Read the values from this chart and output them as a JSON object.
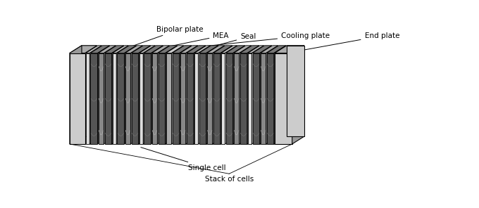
{
  "background_color": "#ffffff",
  "labels": {
    "bipolar_plate": "Bipolar plate",
    "mea": "MEA",
    "seal": "Seal",
    "cooling_plate": "Cooling plate",
    "end_plate": "End plate",
    "single_cell": "Single cell",
    "stack_of_cells": "Stack of cells"
  },
  "colors": {
    "end_plate_face": "#cccccc",
    "end_plate_top": "#aaaaaa",
    "end_plate_side": "#999999",
    "bipolar_face": "#555555",
    "bipolar_top": "#777777",
    "bipolar_side": "#333333",
    "mea_face": "#888888",
    "mea_top": "#aaaaaa",
    "mea_side": "#666666",
    "seal_face": "#dddddd",
    "seal_top": "#bbbbbb",
    "seal_side": "#999999",
    "cooling_face": "#aaaaaa",
    "cooling_top": "#cccccc",
    "cooling_side": "#888888",
    "black": "#000000"
  },
  "figsize": [
    6.8,
    2.96
  ],
  "dpi": 100
}
